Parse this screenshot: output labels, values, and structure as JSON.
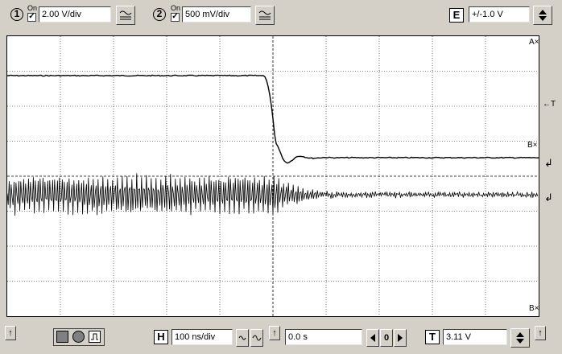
{
  "channels": [
    {
      "number": "1",
      "on_label": "On",
      "scale": "2.00 V/div"
    },
    {
      "number": "2",
      "on_label": "On",
      "scale": "500 mV/div"
    }
  ],
  "edge": {
    "letter": "E",
    "value": "+/-1.0 V"
  },
  "markers": {
    "a": "A×",
    "t": "←T",
    "b_mid": "B×",
    "b_bottom": "B×",
    "ch1_ref": "↲",
    "ch2_ref": "↲"
  },
  "bottom": {
    "arrow_left": "↑",
    "h_letter": "H",
    "timebase": "100 ns/div",
    "delay_arrow": "↑",
    "delay": "0.0 s",
    "step_value": "0",
    "t_letter": "T",
    "trigger_level": "3.11 V",
    "arrow_right": "↑"
  }
}
